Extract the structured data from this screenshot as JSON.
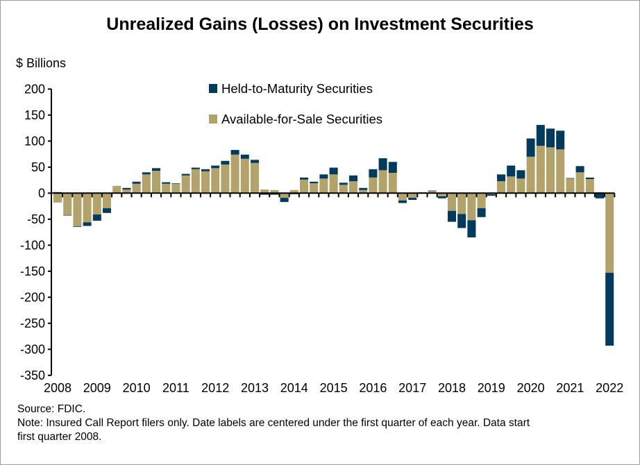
{
  "chart_data": {
    "type": "bar",
    "stacked": true,
    "title": "Unrealized Gains (Losses) on Investment Securities",
    "ylabel": "$ Billions",
    "xlabel": "",
    "ylim": [
      -350,
      200
    ],
    "yticks": [
      200,
      150,
      100,
      50,
      0,
      -50,
      -100,
      -150,
      -200,
      -250,
      -300,
      -350
    ],
    "xtick_labels": [
      "2008",
      "2009",
      "2010",
      "2011",
      "2012",
      "2013",
      "2014",
      "2015",
      "2016",
      "2017",
      "2018",
      "2019",
      "2020",
      "2021",
      "2022"
    ],
    "categories": [
      "2008Q1",
      "2008Q2",
      "2008Q3",
      "2008Q4",
      "2009Q1",
      "2009Q2",
      "2009Q3",
      "2009Q4",
      "2010Q1",
      "2010Q2",
      "2010Q3",
      "2010Q4",
      "2011Q1",
      "2011Q2",
      "2011Q3",
      "2011Q4",
      "2012Q1",
      "2012Q2",
      "2012Q3",
      "2012Q4",
      "2013Q1",
      "2013Q2",
      "2013Q3",
      "2013Q4",
      "2014Q1",
      "2014Q2",
      "2014Q3",
      "2014Q4",
      "2015Q1",
      "2015Q2",
      "2015Q3",
      "2015Q4",
      "2016Q1",
      "2016Q2",
      "2016Q3",
      "2016Q4",
      "2017Q1",
      "2017Q2",
      "2017Q3",
      "2017Q4",
      "2018Q1",
      "2018Q2",
      "2018Q3",
      "2018Q4",
      "2019Q1",
      "2019Q2",
      "2019Q3",
      "2019Q4",
      "2020Q1",
      "2020Q2",
      "2020Q3",
      "2020Q4",
      "2021Q1",
      "2021Q2",
      "2021Q3",
      "2021Q4",
      "2022Q1"
    ],
    "series": [
      {
        "name": "Available-for-Sale Securities",
        "color": "#B3A269",
        "values": [
          -18,
          -42,
          -64,
          -56,
          -41,
          -29,
          14,
          7,
          18,
          36,
          43,
          18,
          18,
          34,
          46,
          42,
          48,
          55,
          74,
          66,
          58,
          7,
          6,
          -9,
          6,
          26,
          19,
          28,
          36,
          16,
          23,
          6,
          30,
          44,
          39,
          -14,
          -9,
          2,
          4,
          -6,
          -34,
          -40,
          -52,
          -29,
          -2,
          23,
          32,
          28,
          70,
          91,
          88,
          84,
          28,
          40,
          27,
          2,
          -153
        ]
      },
      {
        "name": "Held-to-Maturity Securities",
        "color": "#003A5D",
        "values": [
          2,
          -1,
          -1,
          -7,
          -12,
          -9,
          0,
          3,
          4,
          4,
          5,
          3,
          1,
          3,
          3,
          4,
          5,
          7,
          9,
          8,
          6,
          -3,
          -3,
          -8,
          -2,
          4,
          3,
          8,
          13,
          4,
          11,
          4,
          16,
          23,
          21,
          -5,
          -4,
          0,
          1,
          -4,
          -21,
          -27,
          -33,
          -17,
          -3,
          13,
          21,
          16,
          35,
          40,
          36,
          36,
          1,
          12,
          3,
          -10,
          -140
        ]
      }
    ],
    "legend": "top-center",
    "grid": false
  },
  "source": "Source: FDIC.",
  "note_line1": "Note: Insured Call Report filers only. Date labels are centered under the first quarter of each year. Data start",
  "note_line2": "first quarter 2008."
}
